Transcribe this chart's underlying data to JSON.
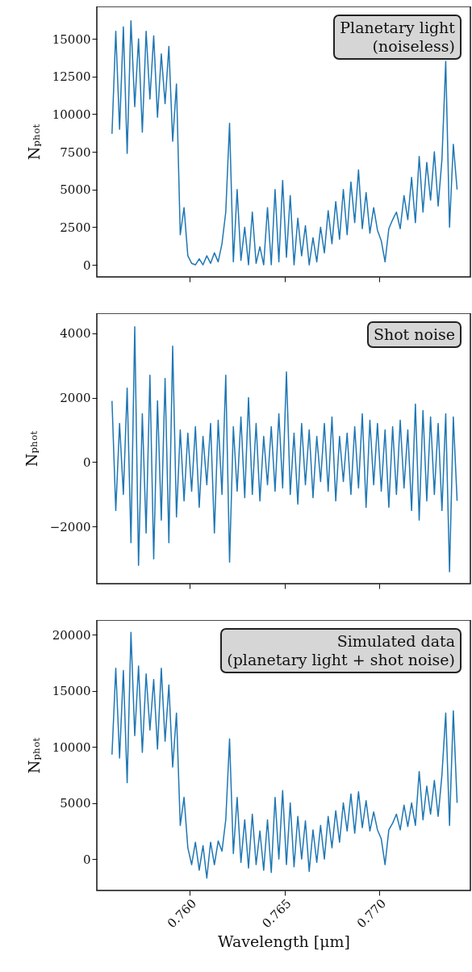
{
  "chart_data": [
    {
      "type": "line",
      "ylabel": "Nₚₕₒₜ",
      "annotations": [
        "Planetary light\n(noiseless)"
      ],
      "tick_labels": "y",
      "xlim": [
        0.7551,
        0.7748
      ],
      "xticks": [
        {
          "value": 0.76,
          "label": null
        },
        {
          "value": 0.765,
          "label": null
        },
        {
          "value": 0.77,
          "label": null
        }
      ],
      "ylim": [
        -800,
        17150
      ],
      "yticks": [
        0,
        2500,
        5000,
        7500,
        10000,
        12500,
        15000
      ],
      "x": [
        0.7559,
        0.7561,
        0.7563,
        0.7565,
        0.7567,
        0.7569,
        0.7571,
        0.7573,
        0.7575,
        0.7577,
        0.7579,
        0.7581,
        0.7583,
        0.7585,
        0.7587,
        0.7589,
        0.7591,
        0.7593,
        0.7595,
        0.7597,
        0.7599,
        0.7601,
        0.7603,
        0.7605,
        0.7607,
        0.7609,
        0.7611,
        0.7613,
        0.7615,
        0.7617,
        0.7619,
        0.7621,
        0.7623,
        0.7625,
        0.7627,
        0.7629,
        0.7631,
        0.7633,
        0.7635,
        0.7637,
        0.7639,
        0.7641,
        0.7643,
        0.7645,
        0.7647,
        0.7649,
        0.7651,
        0.7653,
        0.7655,
        0.7657,
        0.7659,
        0.7661,
        0.7663,
        0.7665,
        0.7667,
        0.7669,
        0.7671,
        0.7673,
        0.7675,
        0.7677,
        0.7679,
        0.7681,
        0.7683,
        0.7685,
        0.7687,
        0.7689,
        0.7691,
        0.7693,
        0.7695,
        0.7697,
        0.7699,
        0.7701,
        0.7703,
        0.7705,
        0.7707,
        0.7709,
        0.7711,
        0.7713,
        0.7715,
        0.7717,
        0.7719,
        0.7721,
        0.7723,
        0.7725,
        0.7727,
        0.7729,
        0.7731,
        0.7733,
        0.7735,
        0.7737,
        0.7739,
        0.7741
      ],
      "series": [
        {
          "color": "#1f77b4",
          "values": [
            8700,
            15500,
            9000,
            15800,
            7400,
            16200,
            10500,
            15000,
            8800,
            15500,
            11000,
            15200,
            9800,
            14000,
            10700,
            14500,
            8200,
            12000,
            2000,
            3800,
            600,
            100,
            0,
            400,
            0,
            600,
            100,
            800,
            200,
            1400,
            3500,
            9400,
            200,
            5000,
            300,
            2500,
            0,
            3500,
            100,
            1200,
            0,
            3800,
            0,
            5000,
            200,
            5600,
            500,
            4600,
            0,
            3100,
            600,
            2600,
            0,
            1800,
            200,
            2500,
            800,
            3600,
            1400,
            4200,
            1700,
            5000,
            2000,
            5500,
            2800,
            6300,
            2400,
            4800,
            2100,
            3800,
            2300,
            1600,
            200,
            2400,
            3000,
            3500,
            2400,
            4600,
            3000,
            5800,
            2800,
            7200,
            3500,
            6800,
            4300,
            7500,
            3900,
            7000,
            13500,
            2500,
            8000,
            5000
          ]
        }
      ]
    },
    {
      "type": "line",
      "ylabel": "Nₚₕₒₜ",
      "annotations": [
        "Shot noise"
      ],
      "tick_labels": "y",
      "xlim": [
        0.7551,
        0.7748
      ],
      "xticks": [
        {
          "value": 0.76,
          "label": null
        },
        {
          "value": 0.765,
          "label": null
        },
        {
          "value": 0.77,
          "label": null
        }
      ],
      "ylim": [
        -3770,
        4620
      ],
      "yticks": [
        -2000,
        0,
        2000,
        4000
      ],
      "x": [
        0.7559,
        0.7561,
        0.7563,
        0.7565,
        0.7567,
        0.7569,
        0.7571,
        0.7573,
        0.7575,
        0.7577,
        0.7579,
        0.7581,
        0.7583,
        0.7585,
        0.7587,
        0.7589,
        0.7591,
        0.7593,
        0.7595,
        0.7597,
        0.7599,
        0.7601,
        0.7603,
        0.7605,
        0.7607,
        0.7609,
        0.7611,
        0.7613,
        0.7615,
        0.7617,
        0.7619,
        0.7621,
        0.7623,
        0.7625,
        0.7627,
        0.7629,
        0.7631,
        0.7633,
        0.7635,
        0.7637,
        0.7639,
        0.7641,
        0.7643,
        0.7645,
        0.7647,
        0.7649,
        0.7651,
        0.7653,
        0.7655,
        0.7657,
        0.7659,
        0.7661,
        0.7663,
        0.7665,
        0.7667,
        0.7669,
        0.7671,
        0.7673,
        0.7675,
        0.7677,
        0.7679,
        0.7681,
        0.7683,
        0.7685,
        0.7687,
        0.7689,
        0.7691,
        0.7693,
        0.7695,
        0.7697,
        0.7699,
        0.7701,
        0.7703,
        0.7705,
        0.7707,
        0.7709,
        0.7711,
        0.7713,
        0.7715,
        0.7717,
        0.7719,
        0.7721,
        0.7723,
        0.7725,
        0.7727,
        0.7729,
        0.7731,
        0.7733,
        0.7735,
        0.7737,
        0.7739,
        0.7741
      ],
      "series": [
        {
          "color": "#1f77b4",
          "values": [
            1900,
            -1500,
            1200,
            -1000,
            2300,
            -2500,
            4200,
            -3200,
            1500,
            -2200,
            2700,
            -3000,
            1900,
            -1800,
            2600,
            -2500,
            3600,
            -1700,
            1000,
            -1200,
            900,
            -900,
            1100,
            -1400,
            800,
            -700,
            1200,
            -2200,
            1300,
            -1000,
            2700,
            -3100,
            1100,
            -900,
            1400,
            -1100,
            2000,
            -1000,
            1200,
            -1200,
            800,
            -700,
            1100,
            -900,
            1500,
            -800,
            2800,
            -1000,
            900,
            -1300,
            1200,
            -700,
            1000,
            -1100,
            800,
            -600,
            1200,
            -900,
            1400,
            -1200,
            800,
            -600,
            900,
            -1000,
            1100,
            -800,
            1500,
            -1400,
            1300,
            -700,
            1200,
            -900,
            1000,
            -1400,
            1100,
            -1000,
            1300,
            -800,
            1000,
            -1500,
            1800,
            -1800,
            1600,
            -1200,
            1400,
            -1000,
            1200,
            -1500,
            1500,
            -3400,
            1400,
            -1200
          ]
        }
      ]
    },
    {
      "type": "line",
      "xlabel": "Wavelength [μm]",
      "ylabel": "Nₚₕₒₜ",
      "annotations": [
        "Simulated data\n(planetary light + shot noise)"
      ],
      "xlim": [
        0.7551,
        0.7748
      ],
      "xticks": [
        {
          "value": 0.76,
          "label": "0.760"
        },
        {
          "value": 0.765,
          "label": "0.765"
        },
        {
          "value": 0.77,
          "label": "0.770"
        }
      ],
      "ylim": [
        -2800,
        21300
      ],
      "yticks": [
        0,
        5000,
        10000,
        15000,
        20000
      ],
      "x": [
        0.7559,
        0.7561,
        0.7563,
        0.7565,
        0.7567,
        0.7569,
        0.7571,
        0.7573,
        0.7575,
        0.7577,
        0.7579,
        0.7581,
        0.7583,
        0.7585,
        0.7587,
        0.7589,
        0.7591,
        0.7593,
        0.7595,
        0.7597,
        0.7599,
        0.7601,
        0.7603,
        0.7605,
        0.7607,
        0.7609,
        0.7611,
        0.7613,
        0.7615,
        0.7617,
        0.7619,
        0.7621,
        0.7623,
        0.7625,
        0.7627,
        0.7629,
        0.7631,
        0.7633,
        0.7635,
        0.7637,
        0.7639,
        0.7641,
        0.7643,
        0.7645,
        0.7647,
        0.7649,
        0.7651,
        0.7653,
        0.7655,
        0.7657,
        0.7659,
        0.7661,
        0.7663,
        0.7665,
        0.7667,
        0.7669,
        0.7671,
        0.7673,
        0.7675,
        0.7677,
        0.7679,
        0.7681,
        0.7683,
        0.7685,
        0.7687,
        0.7689,
        0.7691,
        0.7693,
        0.7695,
        0.7697,
        0.7699,
        0.7701,
        0.7703,
        0.7705,
        0.7707,
        0.7709,
        0.7711,
        0.7713,
        0.7715,
        0.7717,
        0.7719,
        0.7721,
        0.7723,
        0.7725,
        0.7727,
        0.7729,
        0.7731,
        0.7733,
        0.7735,
        0.7737,
        0.7739,
        0.7741
      ],
      "series": [
        {
          "color": "#1f77b4",
          "values": [
            9300,
            17000,
            9000,
            16800,
            6800,
            20200,
            11000,
            17200,
            9500,
            16500,
            11500,
            16000,
            9800,
            17000,
            10500,
            15500,
            8200,
            13000,
            3000,
            5500,
            1000,
            -500,
            1500,
            -1000,
            1200,
            -1700,
            1500,
            -500,
            1600,
            700,
            3500,
            10700,
            500,
            5500,
            -300,
            3500,
            -800,
            4000,
            -500,
            2500,
            -1000,
            3500,
            -1200,
            5500,
            0,
            6100,
            -500,
            5000,
            -700,
            3800,
            0,
            3400,
            -1100,
            2600,
            -300,
            3000,
            0,
            3800,
            1000,
            4300,
            1500,
            5000,
            2500,
            5800,
            2300,
            6000,
            2800,
            5200,
            2500,
            4200,
            2600,
            1800,
            -500,
            2600,
            3200,
            4000,
            2600,
            4800,
            2900,
            5000,
            3000,
            7800,
            3500,
            6500,
            4000,
            7000,
            3800,
            7500,
            13000,
            3000,
            13200,
            5000
          ]
        }
      ]
    }
  ]
}
